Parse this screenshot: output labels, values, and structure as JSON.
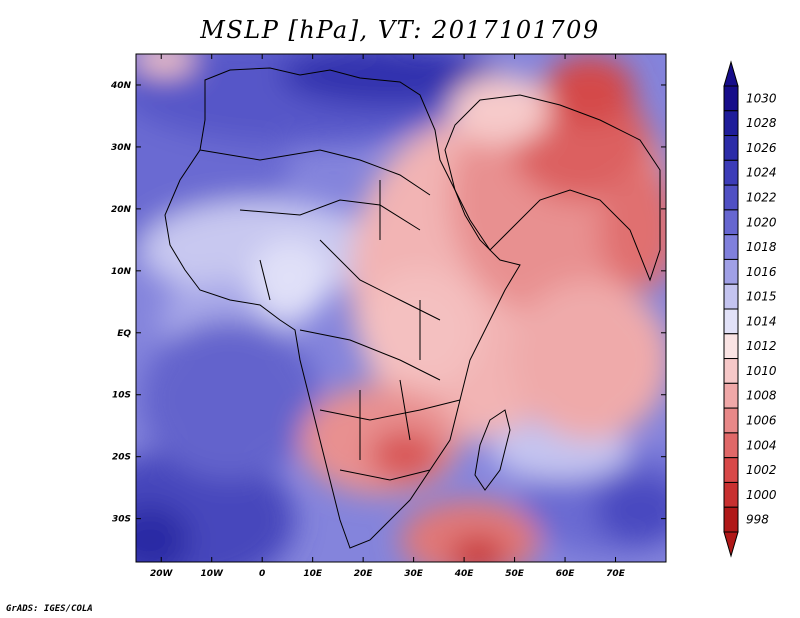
{
  "title": "MSLP [hPa], VT: 2017101709",
  "credit": "GrADS: IGES/COLA",
  "map": {
    "projection": "lat-lon",
    "lon_range": [
      -25,
      80
    ],
    "lat_range": [
      -37,
      45
    ],
    "lon_ticks": [
      {
        "value": -20,
        "label": "20W"
      },
      {
        "value": -10,
        "label": "10W"
      },
      {
        "value": 0,
        "label": "0"
      },
      {
        "value": 10,
        "label": "10E"
      },
      {
        "value": 20,
        "label": "20E"
      },
      {
        "value": 30,
        "label": "30E"
      },
      {
        "value": 40,
        "label": "40E"
      },
      {
        "value": 50,
        "label": "50E"
      },
      {
        "value": 60,
        "label": "60E"
      },
      {
        "value": 70,
        "label": "70E"
      }
    ],
    "lat_ticks": [
      {
        "value": 40,
        "label": "40N"
      },
      {
        "value": 30,
        "label": "30N"
      },
      {
        "value": 20,
        "label": "20N"
      },
      {
        "value": 10,
        "label": "10N"
      },
      {
        "value": 0,
        "label": "EQ"
      },
      {
        "value": -10,
        "label": "10S"
      },
      {
        "value": -20,
        "label": "20S"
      },
      {
        "value": -30,
        "label": "30S"
      }
    ]
  },
  "colorbar": {
    "levels": [
      {
        "label": "1030",
        "color": "#170d8a"
      },
      {
        "label": "1028",
        "color": "#1f1d9a"
      },
      {
        "label": "1026",
        "color": "#2c2ca8"
      },
      {
        "label": "1024",
        "color": "#3c3cb8"
      },
      {
        "label": "1022",
        "color": "#5050c4"
      },
      {
        "label": "1020",
        "color": "#6666d0"
      },
      {
        "label": "1018",
        "color": "#8080dc"
      },
      {
        "label": "1016",
        "color": "#a0a0e6"
      },
      {
        "label": "1015",
        "color": "#c4c4f0"
      },
      {
        "label": "1014",
        "color": "#e2e2f8"
      },
      {
        "label": "1012",
        "color": "#fae4e4"
      },
      {
        "label": "1010",
        "color": "#f6c8c8"
      },
      {
        "label": "1008",
        "color": "#f0a8a8"
      },
      {
        "label": "1006",
        "color": "#e88888"
      },
      {
        "label": "1004",
        "color": "#e06868"
      },
      {
        "label": "1002",
        "color": "#d84848"
      },
      {
        "label": "1000",
        "color": "#c83030"
      },
      {
        "label": "998",
        "color": "#b01818"
      }
    ]
  }
}
